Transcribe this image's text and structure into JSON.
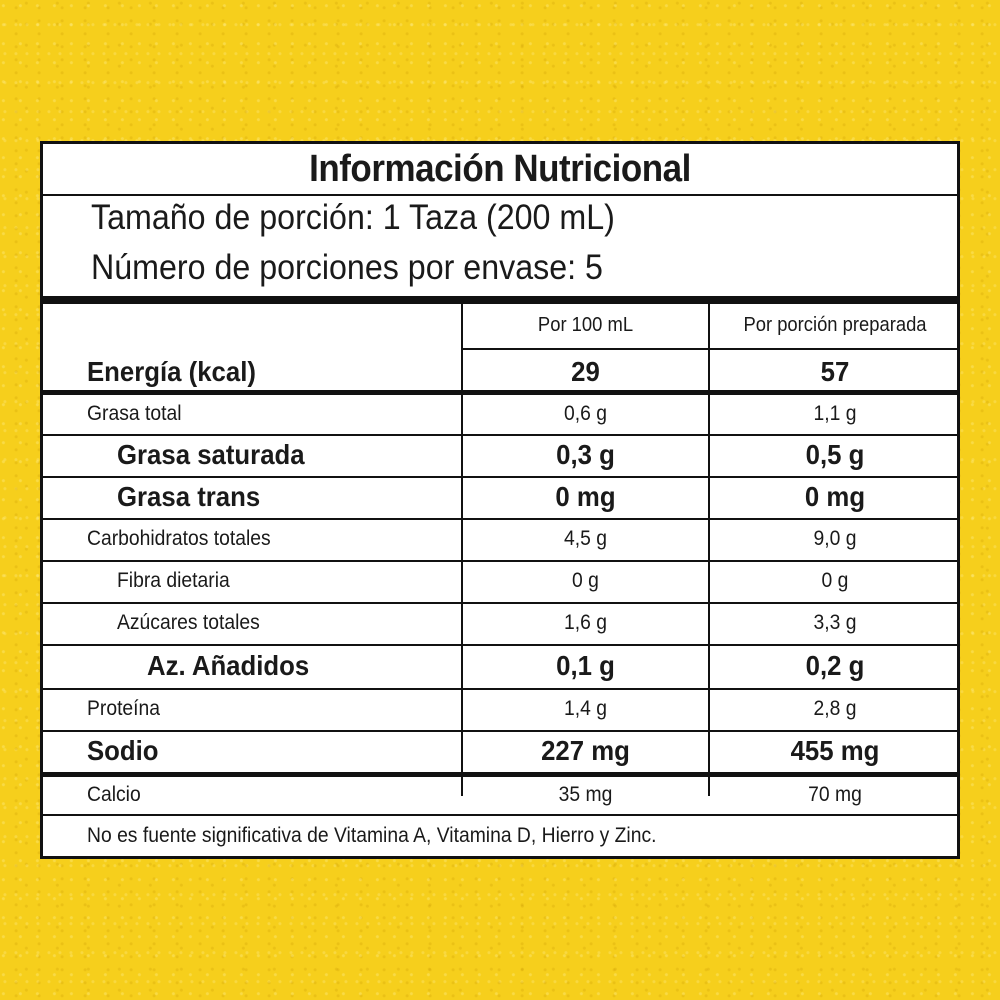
{
  "colors": {
    "background": "#f6cf1c",
    "panel": "#ffffff",
    "text": "#1a1a1a",
    "rule": "#111111"
  },
  "label": {
    "title": "Información Nutricional",
    "serving_size": "Tamaño de porción: 1 Taza (200 mL)",
    "servings_per_container": "Número de porciones por envase: 5",
    "columns": [
      "Por 100 mL",
      "Por porción preparada"
    ],
    "energy": {
      "name": "Energía (kcal)",
      "per100": "29",
      "perServing": "57"
    },
    "rows": [
      {
        "name": "Grasa total",
        "per100": "0,6 g",
        "perServing": "1,1 g"
      },
      {
        "name": "Grasa saturada",
        "per100": "0,3 g",
        "perServing": "0,5 g"
      },
      {
        "name": "Grasa trans",
        "per100": "0 mg",
        "perServing": "0 mg"
      },
      {
        "name": "Carbohidratos totales",
        "per100": "4,5 g",
        "perServing": "9,0 g"
      },
      {
        "name": "Fibra dietaria",
        "per100": "0 g",
        "perServing": "0 g"
      },
      {
        "name": "Azúcares totales",
        "per100": "1,6 g",
        "perServing": "3,3 g"
      },
      {
        "name": "Az. Añadidos",
        "per100": "0,1 g",
        "perServing": "0,2 g"
      },
      {
        "name": "Proteína",
        "per100": "1,4 g",
        "perServing": "2,8 g"
      },
      {
        "name": "Sodio",
        "per100": "227 mg",
        "perServing": "455 mg"
      },
      {
        "name": "Calcio",
        "per100": "35 mg",
        "perServing": "70 mg"
      }
    ],
    "footnote": "No es fuente significativa de Vitamina A, Vitamina D, Hierro y Zinc."
  }
}
